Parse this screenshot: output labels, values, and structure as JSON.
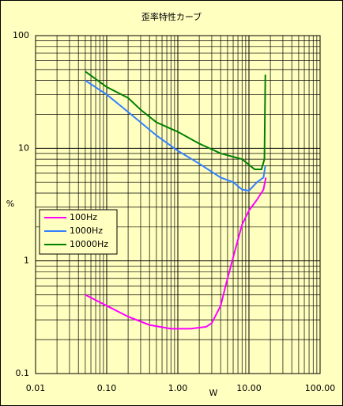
{
  "chart_data": {
    "type": "line",
    "title": "歪率特性カーブ",
    "x_label": "W",
    "y_label": "%",
    "x_scale": "log",
    "y_scale": "log",
    "grid": true,
    "minor_grid": true,
    "legend": "left",
    "background": "#ffffc0",
    "xlim": [
      0.01,
      100
    ],
    "xticks": [
      {
        "value": 0.01,
        "label": "0.01"
      },
      {
        "value": 0.1,
        "label": "0.10"
      },
      {
        "value": 1,
        "label": "1.00"
      },
      {
        "value": 10,
        "label": "10.00"
      },
      {
        "value": 100,
        "label": "100.00"
      }
    ],
    "ylim": [
      0.1,
      100
    ],
    "yticks": [
      0.1,
      1,
      10,
      100
    ],
    "series": [
      {
        "name": "100Hz",
        "color": "#ff00ff",
        "x": [
          0.05,
          0.1,
          0.2,
          0.4,
          0.8,
          1.5,
          2.5,
          3,
          4,
          5,
          6.5,
          8,
          10,
          13,
          16,
          17.3
        ],
        "values": [
          0.5,
          0.4,
          0.32,
          0.27,
          0.25,
          0.25,
          0.26,
          0.28,
          0.4,
          0.7,
          1.3,
          2.1,
          2.8,
          3.5,
          4.3,
          5.5
        ]
      },
      {
        "name": "1000Hz",
        "color": "#3380ff",
        "x": [
          0.05,
          0.1,
          0.2,
          0.5,
          1,
          2,
          4,
          6,
          8,
          10,
          13,
          16,
          17
        ],
        "values": [
          40,
          30,
          21,
          13,
          9.5,
          7.3,
          5.5,
          5,
          4.3,
          4.2,
          5,
          5.5,
          7
        ]
      },
      {
        "name": "10000Hz",
        "color": "#008000",
        "x": [
          0.05,
          0.1,
          0.2,
          0.3,
          0.5,
          1,
          2,
          4,
          8,
          12,
          15,
          16.5,
          17
        ],
        "values": [
          48,
          35,
          28,
          22,
          17,
          14,
          11,
          9,
          8,
          6.5,
          6.5,
          8,
          45
        ]
      }
    ]
  }
}
